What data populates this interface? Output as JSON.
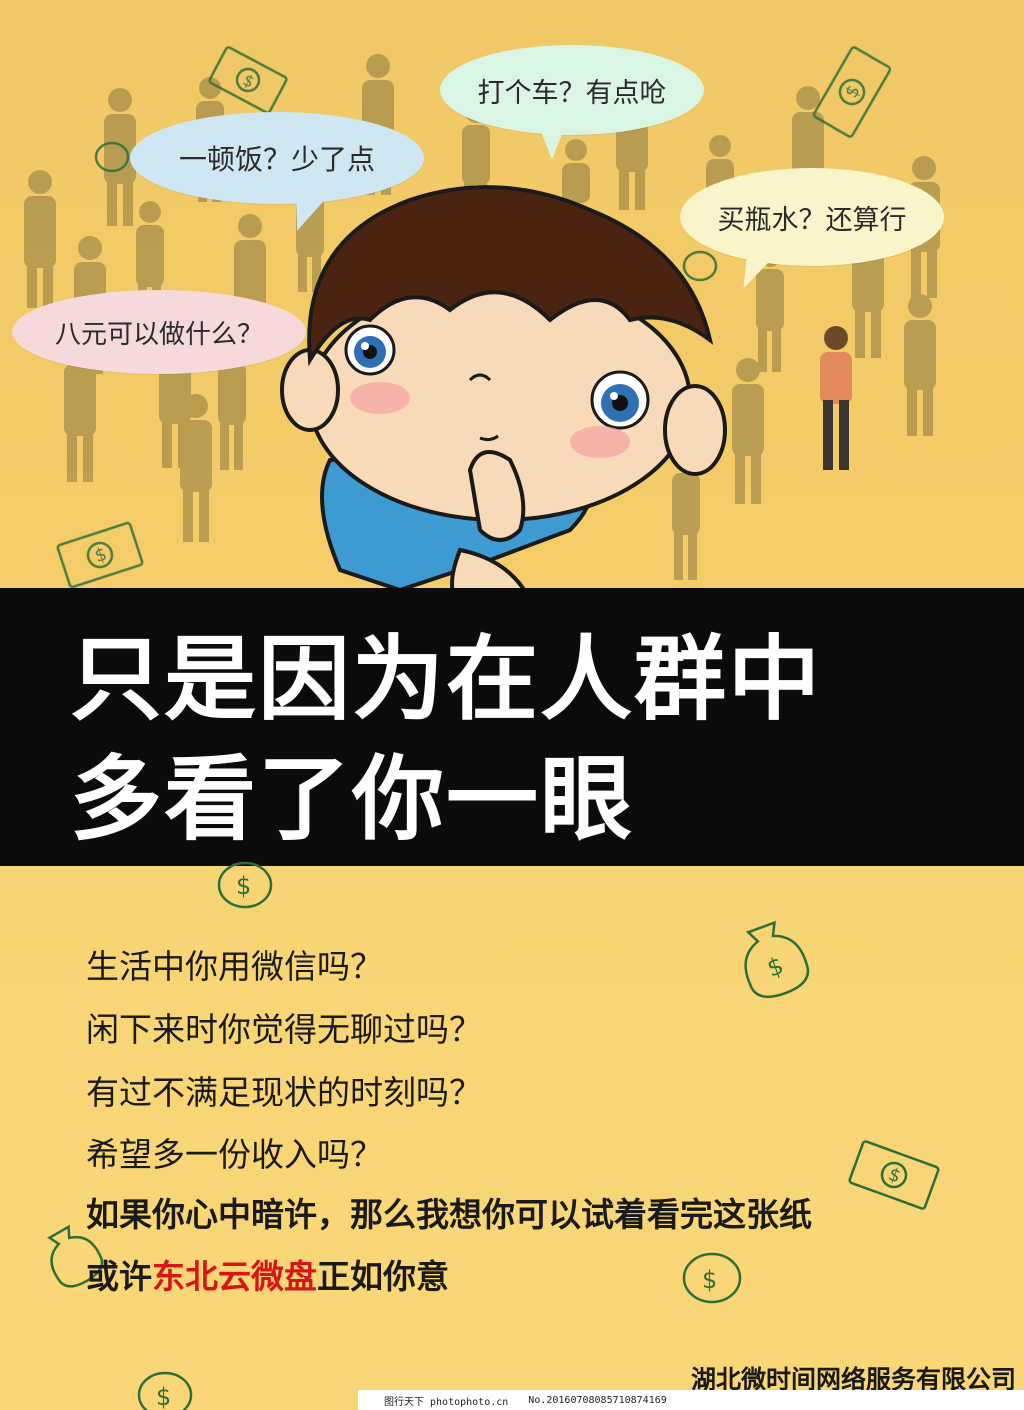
{
  "bubbles": {
    "b1": "一顿饭？少了点",
    "b2": "打个车？有点呛",
    "b3": "买瓶水？还算行",
    "b4": "八元可以做什么？"
  },
  "headline": {
    "line1": "只是因为在人群中",
    "line2": "多看了你一眼"
  },
  "questions": [
    "生活中你用微信吗？",
    "闲下来时你觉得无聊过吗？",
    "有过不满足现状的时刻吗？",
    "希望多一份收入吗？"
  ],
  "statement1": "如果你心中暗许，那么我想你可以试着看完这张纸",
  "statement2": {
    "prefix": "或许",
    "highlight": "东北云微盘",
    "suffix": "正如你意"
  },
  "company": "湖北微时间网络服务有限公司",
  "watermark": {
    "site": "图行天下 photophoto.cn",
    "number": "No.20160708085710874169"
  },
  "colors": {
    "background": "#f6cf6a",
    "banner": "#0b0b0b",
    "highlight": "#d8161a"
  }
}
